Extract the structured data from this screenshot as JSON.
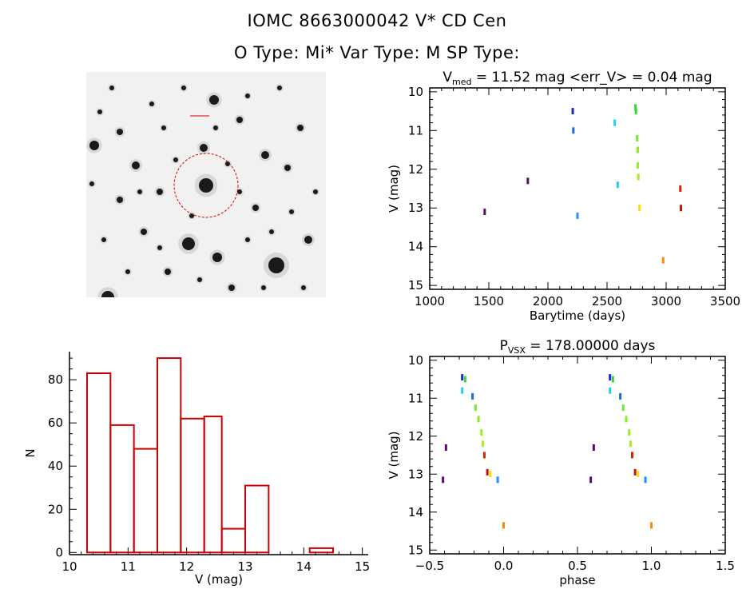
{
  "header": {
    "title": "IOMC 8663000042   V* CD Cen",
    "subtitle": "O Type: Mi*  Var Type: M  SP Type:"
  },
  "chart_data": [
    {
      "type": "scatter",
      "panel": "light-curve",
      "title": "V_med = 11.52 mag <err_V> = 0.04 mag",
      "title_parts": {
        "prefix": "V",
        "sub": "med",
        "rest": " = 11.52 mag <err_V> = 0.04 mag"
      },
      "xlabel": "Barytime (days)",
      "ylabel": "V (mag)",
      "xlim": [
        1000,
        3500
      ],
      "ylim": [
        15.1,
        9.9
      ],
      "xticks": [
        1000,
        1500,
        2000,
        2500,
        3000,
        3500
      ],
      "yticks": [
        10,
        11,
        12,
        13,
        14,
        15
      ],
      "points": [
        {
          "x": 1465,
          "y": 13.1,
          "color": "#5a0a6a"
        },
        {
          "x": 1830,
          "y": 12.3,
          "color": "#5a0a6a"
        },
        {
          "x": 2210,
          "y": 10.5,
          "color": "#1a2bcc"
        },
        {
          "x": 2215,
          "y": 11.0,
          "color": "#1a6ddc"
        },
        {
          "x": 2250,
          "y": 13.2,
          "color": "#1e90ff"
        },
        {
          "x": 2565,
          "y": 10.8,
          "color": "#22ccee"
        },
        {
          "x": 2590,
          "y": 12.4,
          "color": "#22ccee"
        },
        {
          "x": 2740,
          "y": 10.4,
          "color": "#33dd33"
        },
        {
          "x": 2745,
          "y": 10.5,
          "color": "#33dd33"
        },
        {
          "x": 2755,
          "y": 11.2,
          "color": "#66ee33"
        },
        {
          "x": 2760,
          "y": 11.5,
          "color": "#88ee22"
        },
        {
          "x": 2760,
          "y": 11.9,
          "color": "#99ee22"
        },
        {
          "x": 2765,
          "y": 12.2,
          "color": "#aaee22"
        },
        {
          "x": 2775,
          "y": 13.0,
          "color": "#ffdd00"
        },
        {
          "x": 2975,
          "y": 14.35,
          "color": "#ff8800"
        },
        {
          "x": 3120,
          "y": 12.5,
          "color": "#dd2200"
        },
        {
          "x": 3125,
          "y": 13.0,
          "color": "#cc1100"
        }
      ]
    },
    {
      "type": "bar",
      "panel": "histogram",
      "title": "",
      "xlabel": "V (mag)",
      "ylabel": "N",
      "xlim": [
        10,
        15.1
      ],
      "ylim": [
        -1,
        93
      ],
      "xticks": [
        10,
        11,
        12,
        13,
        14,
        15
      ],
      "yticks": [
        0,
        20,
        40,
        60,
        80
      ],
      "bins": [
        {
          "x0": 10.3,
          "x1": 10.7,
          "value": 83
        },
        {
          "x0": 10.7,
          "x1": 11.1,
          "value": 59
        },
        {
          "x0": 11.1,
          "x1": 11.5,
          "value": 48
        },
        {
          "x0": 11.5,
          "x1": 11.9,
          "value": 90
        },
        {
          "x0": 11.9,
          "x1": 12.3,
          "value": 62
        },
        {
          "x0": 12.3,
          "x1": 12.6,
          "value": 63
        },
        {
          "x0": 12.6,
          "x1": 13.0,
          "value": 11
        },
        {
          "x0": 13.0,
          "x1": 13.4,
          "value": 31
        },
        {
          "x0": 14.1,
          "x1": 14.5,
          "value": 2
        }
      ],
      "color": "#cc0000"
    },
    {
      "type": "scatter",
      "panel": "phase-plot",
      "title": "P_VSX = 178.00000 days",
      "title_parts": {
        "prefix": "P",
        "sub": "VSX",
        "rest": " = 178.00000 days"
      },
      "xlabel": "phase",
      "ylabel": "V (mag)",
      "xlim": [
        -0.5,
        1.5
      ],
      "ylim": [
        15.1,
        9.9
      ],
      "xticks": [
        -0.5,
        0.0,
        0.5,
        1.0,
        1.5
      ],
      "xticklabels": [
        "−0.5",
        "0.0",
        "0.5",
        "1.0",
        "1.5"
      ],
      "yticks": [
        10,
        11,
        12,
        13,
        14,
        15
      ],
      "points": [
        {
          "x": -0.41,
          "y": 13.15,
          "color": "#5a0a6a"
        },
        {
          "x": -0.39,
          "y": 12.3,
          "color": "#5a0a6a"
        },
        {
          "x": -0.28,
          "y": 10.45,
          "color": "#1a2bcc"
        },
        {
          "x": -0.28,
          "y": 10.8,
          "color": "#22ccee"
        },
        {
          "x": -0.26,
          "y": 10.5,
          "color": "#33dd33"
        },
        {
          "x": -0.21,
          "y": 10.95,
          "color": "#1a6ddc"
        },
        {
          "x": -0.19,
          "y": 11.25,
          "color": "#66ee33"
        },
        {
          "x": -0.17,
          "y": 11.55,
          "color": "#88ee22"
        },
        {
          "x": -0.15,
          "y": 11.9,
          "color": "#99ee22"
        },
        {
          "x": -0.14,
          "y": 12.2,
          "color": "#aaee22"
        },
        {
          "x": -0.13,
          "y": 12.5,
          "color": "#dd2200"
        },
        {
          "x": -0.11,
          "y": 12.95,
          "color": "#cc1100"
        },
        {
          "x": -0.09,
          "y": 13.0,
          "color": "#ffdd00"
        },
        {
          "x": -0.04,
          "y": 13.15,
          "color": "#1e90ff"
        },
        {
          "x": 0.0,
          "y": 14.35,
          "color": "#ff8800"
        },
        {
          "x": 0.59,
          "y": 13.15,
          "color": "#5a0a6a"
        },
        {
          "x": 0.61,
          "y": 12.3,
          "color": "#5a0a6a"
        },
        {
          "x": 0.72,
          "y": 10.45,
          "color": "#1a2bcc"
        },
        {
          "x": 0.72,
          "y": 10.8,
          "color": "#22ccee"
        },
        {
          "x": 0.74,
          "y": 10.5,
          "color": "#33dd33"
        },
        {
          "x": 0.79,
          "y": 10.95,
          "color": "#1a6ddc"
        },
        {
          "x": 0.81,
          "y": 11.25,
          "color": "#66ee33"
        },
        {
          "x": 0.83,
          "y": 11.55,
          "color": "#88ee22"
        },
        {
          "x": 0.85,
          "y": 11.9,
          "color": "#99ee22"
        },
        {
          "x": 0.86,
          "y": 12.2,
          "color": "#aaee22"
        },
        {
          "x": 0.87,
          "y": 12.5,
          "color": "#dd2200"
        },
        {
          "x": 0.89,
          "y": 12.95,
          "color": "#cc1100"
        },
        {
          "x": 0.91,
          "y": 13.0,
          "color": "#ffdd00"
        },
        {
          "x": 0.96,
          "y": 13.15,
          "color": "#1e90ff"
        },
        {
          "x": 1.0,
          "y": 14.35,
          "color": "#ff8800"
        }
      ]
    }
  ],
  "finder_image": {
    "target_circle_color": "#dd0000",
    "stars": [
      [
        258,
        232,
        9
      ],
      [
        236,
        305,
        8
      ],
      [
        346,
        332,
        10
      ],
      [
        118,
        182,
        6
      ],
      [
        268,
        125,
        6
      ],
      [
        255,
        185,
        5
      ],
      [
        272,
        322,
        6
      ],
      [
        135,
        372,
        8
      ],
      [
        332,
        194,
        5
      ],
      [
        170,
        207,
        5
      ],
      [
        150,
        165,
        4
      ],
      [
        300,
        150,
        4
      ],
      [
        200,
        240,
        4
      ],
      [
        376,
        160,
        4
      ],
      [
        386,
        300,
        5
      ],
      [
        210,
        340,
        4
      ],
      [
        150,
        250,
        4
      ],
      [
        320,
        260,
        4
      ],
      [
        360,
        210,
        4
      ],
      [
        180,
        290,
        4
      ],
      [
        290,
        360,
        4
      ],
      [
        130,
        300,
        3
      ],
      [
        140,
        110,
        3
      ],
      [
        230,
        110,
        3
      ],
      [
        350,
        110,
        3
      ],
      [
        310,
        300,
        3
      ],
      [
        190,
        130,
        3
      ],
      [
        220,
        200,
        3
      ],
      [
        285,
        205,
        3
      ],
      [
        395,
        240,
        3
      ],
      [
        160,
        340,
        3
      ],
      [
        250,
        350,
        3
      ],
      [
        380,
        360,
        3
      ],
      [
        115,
        230,
        3
      ],
      [
        330,
        360,
        3
      ],
      [
        205,
        160,
        3
      ],
      [
        365,
        265,
        3
      ],
      [
        125,
        140,
        3
      ],
      [
        300,
        240,
        3
      ],
      [
        240,
        270,
        3
      ],
      [
        175,
        240,
        3
      ],
      [
        340,
        290,
        3
      ],
      [
        310,
        120,
        3
      ],
      [
        200,
        310,
        3
      ],
      [
        270,
        160,
        3
      ]
    ]
  }
}
